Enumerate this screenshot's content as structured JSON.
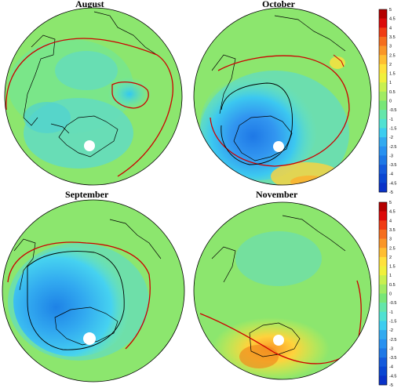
{
  "panels": [
    {
      "id": "august",
      "title": "August"
    },
    {
      "id": "october",
      "title": "October"
    },
    {
      "id": "september",
      "title": "September"
    },
    {
      "id": "november",
      "title": "November"
    }
  ],
  "colorbar": {
    "labels": [
      "5",
      "4.5",
      "4",
      "3.5",
      "3",
      "2.5",
      "2",
      "1.5",
      "1",
      "0.5",
      "0",
      "-0.5",
      "-1",
      "-1.5",
      "-2",
      "-2.5",
      "-3",
      "-3.5",
      "-4",
      "-4.5",
      "-5"
    ],
    "colors": [
      "#b40000",
      "#dc0a0a",
      "#f03c14",
      "#f56e1e",
      "#fa9628",
      "#ffbe32",
      "#ffe13c",
      "#f0f03c",
      "#c8f050",
      "#a0eb64",
      "#78e678",
      "#64e6aa",
      "#50e1d2",
      "#3ccdf0",
      "#32aaf0",
      "#2891f0",
      "#1e78e6",
      "#145adc",
      "#0a46d2",
      "#0a32c8"
    ]
  },
  "colors": {
    "background": "#ffffff",
    "ocean_base": "#8ce66e",
    "contour_red": "#cc0000",
    "coast": "#000000"
  }
}
